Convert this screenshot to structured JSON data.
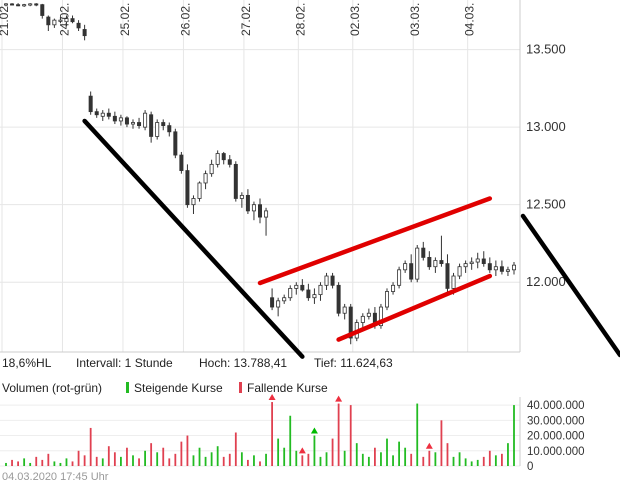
{
  "chart_data": {
    "type": "candlestick",
    "x_tick_labels": [
      "21.02.",
      "24.02.",
      "25.02.",
      "26.02.",
      "27.02.",
      "28.02.",
      "02.03.",
      "03.03.",
      "04.03."
    ],
    "y_tick_labels": [
      "13.500",
      "13.000",
      "12.500",
      "12.000"
    ],
    "y_ticks": [
      13500,
      13000,
      12500,
      12000
    ],
    "ylim": [
      11550,
      13820
    ],
    "x_range": [
      0,
      84
    ],
    "day_start_index": [
      0,
      10,
      20,
      30,
      40,
      49,
      58,
      68,
      77
    ],
    "candles": [
      [
        13790,
        13800,
        13780,
        13795
      ],
      [
        13795,
        13800,
        13785,
        13790
      ],
      [
        13790,
        13800,
        13780,
        13785
      ],
      [
        13785,
        13795,
        13775,
        13790
      ],
      [
        13790,
        13800,
        13780,
        13795
      ],
      [
        13795,
        13800,
        13780,
        13790
      ],
      [
        13790,
        13795,
        13700,
        13720
      ],
      [
        13710,
        13720,
        13620,
        13660
      ],
      [
        13660,
        13700,
        13640,
        13690
      ],
      [
        13690,
        13710,
        13670,
        13690
      ],
      [
        13680,
        13720,
        13650,
        13700
      ],
      [
        13700,
        13720,
        13670,
        13680
      ],
      [
        13670,
        13690,
        13620,
        13640
      ],
      [
        13630,
        13660,
        13560,
        13590
      ],
      [
        13200,
        13230,
        13080,
        13100
      ],
      [
        13100,
        13120,
        13060,
        13080
      ],
      [
        13070,
        13110,
        13040,
        13090
      ],
      [
        13090,
        13120,
        13050,
        13070
      ],
      [
        13070,
        13100,
        13020,
        13040
      ],
      [
        13040,
        13080,
        13010,
        13060
      ],
      [
        13060,
        13070,
        13000,
        13020
      ],
      [
        13020,
        13050,
        12990,
        13030
      ],
      [
        13030,
        13060,
        12990,
        13010
      ],
      [
        13000,
        13110,
        12980,
        13090
      ],
      [
        13080,
        13100,
        12900,
        12940
      ],
      [
        12940,
        13050,
        12920,
        13030
      ],
      [
        13030,
        13050,
        12980,
        13010
      ],
      [
        13010,
        13030,
        12940,
        12970
      ],
      [
        12970,
        12990,
        12800,
        12820
      ],
      [
        12820,
        12840,
        12700,
        12720
      ],
      [
        12720,
        12760,
        12480,
        12500
      ],
      [
        12500,
        12560,
        12440,
        12540
      ],
      [
        12540,
        12650,
        12520,
        12640
      ],
      [
        12640,
        12720,
        12600,
        12700
      ],
      [
        12700,
        12790,
        12680,
        12760
      ],
      [
        12760,
        12850,
        12740,
        12830
      ],
      [
        12830,
        12840,
        12760,
        12790
      ],
      [
        12790,
        12820,
        12740,
        12760
      ],
      [
        12760,
        12780,
        12520,
        12540
      ],
      [
        12540,
        12580,
        12480,
        12560
      ],
      [
        12560,
        12600,
        12440,
        12460
      ],
      [
        12460,
        12520,
        12400,
        12500
      ],
      [
        12500,
        12540,
        12380,
        12420
      ],
      [
        12420,
        12480,
        12300,
        12460
      ],
      [
        11900,
        11960,
        11820,
        11840
      ],
      [
        11840,
        11900,
        11780,
        11880
      ],
      [
        11880,
        11920,
        11860,
        11900
      ],
      [
        11900,
        11980,
        11880,
        11960
      ],
      [
        11960,
        12000,
        11920,
        11980
      ],
      [
        11980,
        12020,
        11940,
        11950
      ],
      [
        11950,
        11990,
        11880,
        11900
      ],
      [
        11900,
        11960,
        11860,
        11920
      ],
      [
        11920,
        12000,
        11880,
        11980
      ],
      [
        11980,
        12060,
        11950,
        12040
      ],
      [
        12040,
        12060,
        11960,
        11980
      ],
      [
        11980,
        12000,
        11780,
        11800
      ],
      [
        11800,
        11860,
        11760,
        11840
      ],
      [
        11840,
        11860,
        11600,
        11640
      ],
      [
        11640,
        11760,
        11620,
        11740
      ],
      [
        11740,
        11800,
        11700,
        11780
      ],
      [
        11780,
        11830,
        11760,
        11800
      ],
      [
        11800,
        11840,
        11700,
        11720
      ],
      [
        11720,
        11860,
        11700,
        11840
      ],
      [
        11840,
        11960,
        11820,
        11940
      ],
      [
        11940,
        12000,
        11920,
        11980
      ],
      [
        11980,
        12100,
        11960,
        12080
      ],
      [
        12080,
        12140,
        12060,
        12120
      ],
      [
        12120,
        12180,
        12000,
        12020
      ],
      [
        12020,
        12240,
        12000,
        12220
      ],
      [
        12220,
        12260,
        12140,
        12160
      ],
      [
        12160,
        12200,
        12080,
        12100
      ],
      [
        12100,
        12160,
        12060,
        12140
      ],
      [
        12140,
        12300,
        12100,
        12120
      ],
      [
        12120,
        12180,
        11920,
        11960
      ],
      [
        11960,
        12060,
        11920,
        12040
      ],
      [
        12040,
        12120,
        12020,
        12100
      ],
      [
        12100,
        12140,
        12060,
        12120
      ],
      [
        12120,
        12160,
        12080,
        12130
      ],
      [
        12130,
        12190,
        12090,
        12150
      ],
      [
        12150,
        12200,
        12100,
        12120
      ],
      [
        12120,
        12160,
        12060,
        12080
      ],
      [
        12080,
        12140,
        12040,
        12100
      ],
      [
        12100,
        12140,
        12050,
        12070
      ],
      [
        12070,
        12100,
        12040,
        12080
      ],
      [
        12080,
        12130,
        12050,
        12110
      ]
    ],
    "volume": [
      2000000,
      4000000,
      3000000,
      5000000,
      2000000,
      6000000,
      4000000,
      8000000,
      3000000,
      2000000,
      5000000,
      3000000,
      10000000,
      7000000,
      25000000,
      6000000,
      5000000,
      13000000,
      9000000,
      6000000,
      12000000,
      7000000,
      5000000,
      10000000,
      15000000,
      9000000,
      12000000,
      5000000,
      8000000,
      16000000,
      20000000,
      7000000,
      12000000,
      6000000,
      9000000,
      13000000,
      6000000,
      8000000,
      22000000,
      9000000,
      4000000,
      7000000,
      3000000,
      8000000,
      42000000,
      18000000,
      12000000,
      33000000,
      10000000,
      7000000,
      8000000,
      20000000,
      6000000,
      9000000,
      18000000,
      41000000,
      10000000,
      40000000,
      15000000,
      8000000,
      6000000,
      12000000,
      9000000,
      18000000,
      7000000,
      16000000,
      12000000,
      8000000,
      41000000,
      6000000,
      10000000,
      9000000,
      30000000,
      15000000,
      6000000,
      9000000,
      5000000,
      3000000,
      4000000,
      6000000,
      10000000,
      7000000,
      8000000,
      15000000,
      40000000
    ],
    "volume_arrows": [
      44,
      49,
      51,
      55,
      70
    ],
    "volume_ticks": [
      0,
      10000000,
      20000000,
      30000000,
      40000000
    ],
    "volume_tick_labels": [
      "0",
      "10.000.000",
      "20.000.000",
      "30.000.000",
      "40.000.000"
    ],
    "volume_max": 44000000,
    "trendlines": [
      {
        "color": "#000000",
        "points": [
          [
            13,
            13040
          ],
          [
            49,
            11520
          ]
        ]
      },
      {
        "color": "#e00000",
        "points": [
          [
            42,
            11995
          ],
          [
            80,
            12540
          ]
        ]
      },
      {
        "color": "#e00000",
        "points": [
          [
            55,
            11630
          ],
          [
            80,
            12040
          ]
        ]
      }
    ],
    "colors": {
      "up": "#00aa00",
      "down": "#e0303a",
      "volume_up": "#22bb22",
      "volume_down": "#e04050",
      "arrow": "#00bb00",
      "arrow_down": "#ee3040",
      "grid": "#e6e6e6",
      "text": "#333333",
      "muted": "#888888"
    }
  },
  "info_bar": {
    "hl_pct": "18,6%HL",
    "interval": "Intervall: 1 Stunde",
    "high": "Hoch: 13.788,41",
    "low": "Tief: 11.624,63"
  },
  "volume_legend": {
    "title": "Volumen (rot-grün)",
    "rising": "Steigende Kurse",
    "falling": "Fallende Kurse"
  },
  "footer": {
    "timestamp": "04.03.2020 17:45 Uhr"
  }
}
